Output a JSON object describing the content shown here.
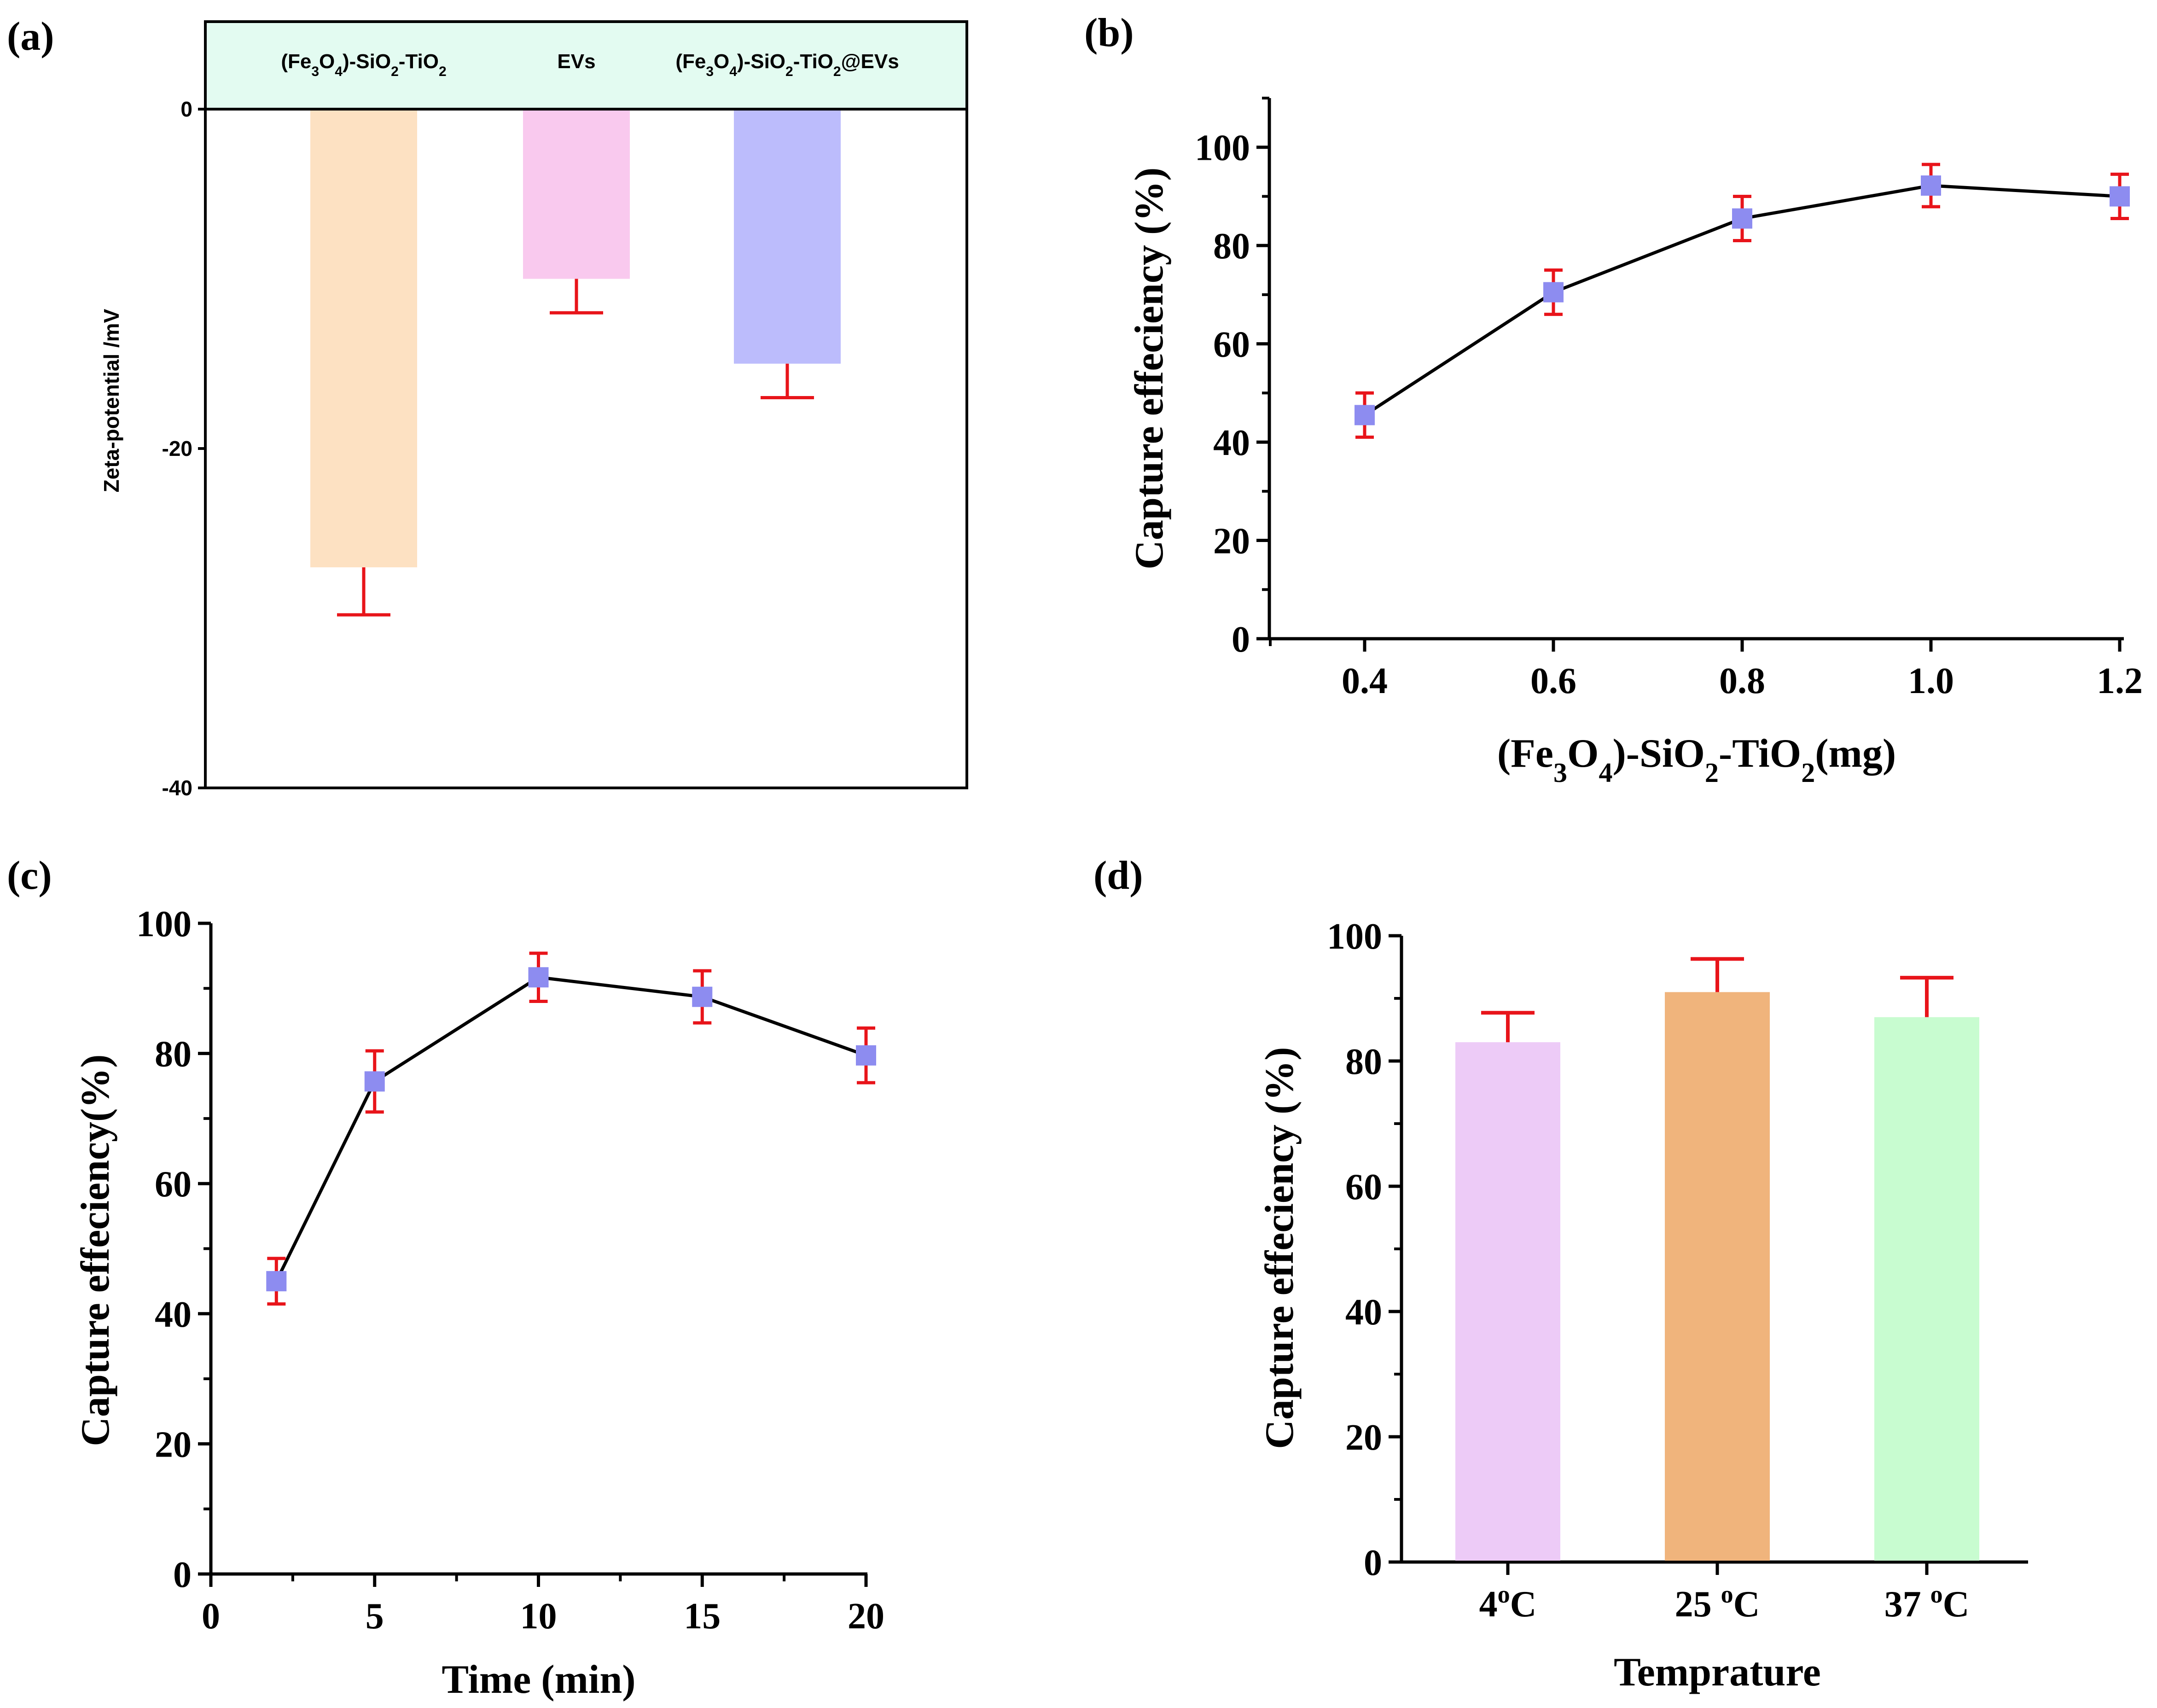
{
  "colors": {
    "axis": "#000000",
    "error_bar": "#e8141a",
    "marker": "#8d8cf0",
    "legend_bg": "#e3fbf1"
  },
  "chart_data": [
    {
      "panel": "(a)",
      "type": "bar",
      "title": "",
      "xlabel": "",
      "ylabel": "Zeta-potential /mV",
      "ylim": [
        -40,
        5
      ],
      "yticks": [
        "0",
        "-20",
        "-40"
      ],
      "categories": [
        "(Fe3O4)-SiO2-TiO2",
        "EVs",
        "(Fe3O4)-SiO2-TiO2@EVs"
      ],
      "category_labels_rich": [
        [
          [
            "(Fe",
            ""
          ],
          [
            "3",
            "sub"
          ],
          [
            "O",
            ""
          ],
          [
            "4",
            "sub"
          ],
          [
            ")-SiO",
            ""
          ],
          [
            "2",
            "sub"
          ],
          [
            "-TiO",
            ""
          ],
          [
            "2",
            "sub"
          ]
        ],
        [
          [
            "EVs",
            ""
          ]
        ],
        [
          [
            "(Fe",
            ""
          ],
          [
            "3",
            "sub"
          ],
          [
            "O",
            ""
          ],
          [
            "4",
            "sub"
          ],
          [
            ")-SiO",
            ""
          ],
          [
            "2",
            "sub"
          ],
          [
            "-TiO",
            ""
          ],
          [
            "2",
            "sub"
          ],
          [
            "@EVs",
            ""
          ]
        ]
      ],
      "values": [
        -27,
        -10,
        -15
      ],
      "errors": [
        2.8,
        2.0,
        2.0
      ],
      "bar_colors": [
        "#fde1c2",
        "#f9c9ee",
        "#bcbcfc"
      ]
    },
    {
      "panel": "(b)",
      "type": "line",
      "xlabel": "(Fe3O4)-SiO2-TiO2(mg)",
      "xlabel_rich": [
        [
          "(Fe",
          ""
        ],
        [
          "3",
          "sub"
        ],
        [
          "O",
          ""
        ],
        [
          "4",
          "sub"
        ],
        [
          ")-SiO",
          ""
        ],
        [
          "2",
          "sub"
        ],
        [
          "-TiO",
          ""
        ],
        [
          "2",
          "sub"
        ],
        [
          "(mg)",
          ""
        ]
      ],
      "ylabel": "Capture effeciency (%)",
      "xlim": [
        0.3,
        1.2
      ],
      "ylim": [
        0,
        110
      ],
      "xticks": [
        "0.4",
        "0.6",
        "0.8",
        "1.0",
        "1.2"
      ],
      "yticks": [
        "0",
        "20",
        "40",
        "60",
        "80",
        "100"
      ],
      "x": [
        0.4,
        0.6,
        0.8,
        1.0,
        1.2
      ],
      "y": [
        45.5,
        70.5,
        85.5,
        92.2,
        90.0
      ],
      "errors": [
        4.5,
        4.5,
        4.5,
        4.3,
        4.5
      ]
    },
    {
      "panel": "(c)",
      "type": "line",
      "xlabel": "Time (min)",
      "ylabel": "Capture effeciency(%)",
      "xlim": [
        0,
        20
      ],
      "ylim": [
        0,
        100
      ],
      "xticks": [
        "0",
        "5",
        "10",
        "15",
        "20"
      ],
      "yticks": [
        "0",
        "20",
        "40",
        "60",
        "80",
        "100"
      ],
      "x": [
        2,
        5,
        10,
        15,
        20
      ],
      "y": [
        45.0,
        75.7,
        91.7,
        88.7,
        79.7
      ],
      "errors": [
        3.5,
        4.7,
        3.7,
        4.0,
        4.2
      ]
    },
    {
      "panel": "(d)",
      "type": "bar",
      "xlabel": "Temprature",
      "ylabel": "Capture effeciency (%)",
      "ylim": [
        0,
        100
      ],
      "yticks": [
        "0",
        "20",
        "40",
        "60",
        "80",
        "100"
      ],
      "categories": [
        "4°C",
        "25 °C",
        "37 °C"
      ],
      "category_labels_rich": [
        [
          [
            "4",
            ""
          ],
          [
            "o",
            "sup"
          ],
          [
            "C",
            ""
          ]
        ],
        [
          [
            "25 ",
            ""
          ],
          [
            "o",
            "sup"
          ],
          [
            "C",
            ""
          ]
        ],
        [
          [
            "37 ",
            ""
          ],
          [
            "o",
            "sup"
          ],
          [
            "C",
            ""
          ]
        ]
      ],
      "values": [
        83.0,
        91.0,
        87.0
      ],
      "errors": [
        4.7,
        5.3,
        6.3
      ],
      "bar_colors": [
        "#edcbf7",
        "#f0b47c",
        "#c8fcd0"
      ]
    }
  ]
}
